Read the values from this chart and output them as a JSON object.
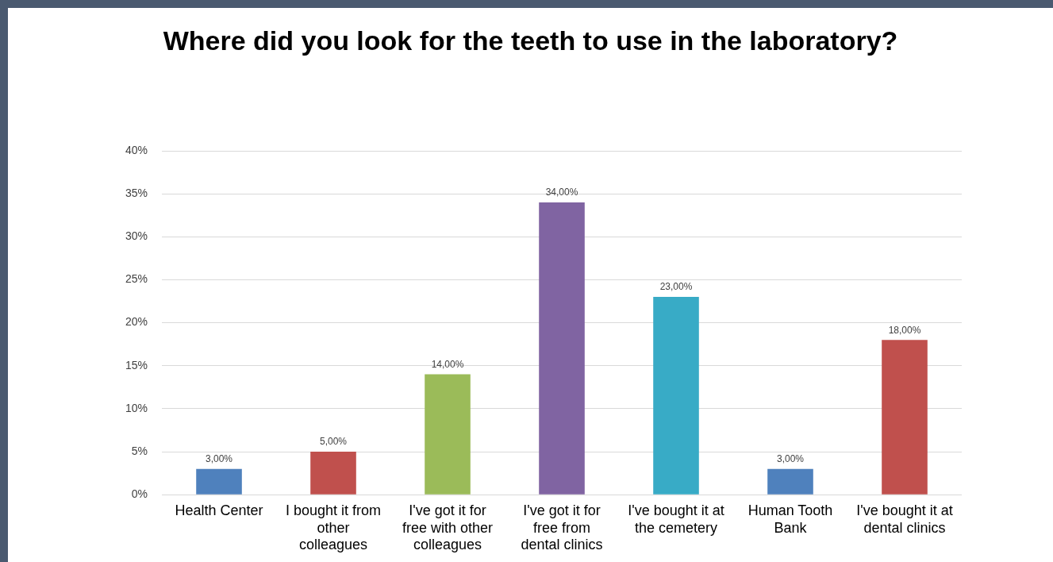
{
  "chart_data": {
    "type": "bar",
    "title": "Where did you look for the teeth to use in the laboratory?",
    "categories": [
      "Health Center",
      "I bought it from other colleagues",
      "I've got it for free with other colleagues",
      "I've got it for free from dental clinics",
      "I've bought it at the cemetery",
      "Human Tooth Bank",
      "I've bought it at dental clinics"
    ],
    "values": [
      3,
      5,
      14,
      34,
      23,
      3,
      18
    ],
    "colors": [
      "#4f81bd",
      "#c0504d",
      "#9bbb59",
      "#8064a2",
      "#38abc6",
      "#4f81bd",
      "#c0504d"
    ],
    "value_labels": [
      "3,00%",
      "5,00%",
      "14,00%",
      "34,00%",
      "23,00%",
      "3,00%",
      "18,00%"
    ],
    "ylim": [
      0,
      40
    ],
    "yticks": [
      {
        "value": 0,
        "label": "0%"
      },
      {
        "value": 5,
        "label": "5%"
      },
      {
        "value": 10,
        "label": "10%"
      },
      {
        "value": 15,
        "label": "15%"
      },
      {
        "value": 20,
        "label": "20%"
      },
      {
        "value": 25,
        "label": "25%"
      },
      {
        "value": 30,
        "label": "30%"
      },
      {
        "value": 35,
        "label": "35%"
      },
      {
        "value": 40,
        "label": "40%"
      }
    ],
    "grid": "y",
    "legend": false
  }
}
